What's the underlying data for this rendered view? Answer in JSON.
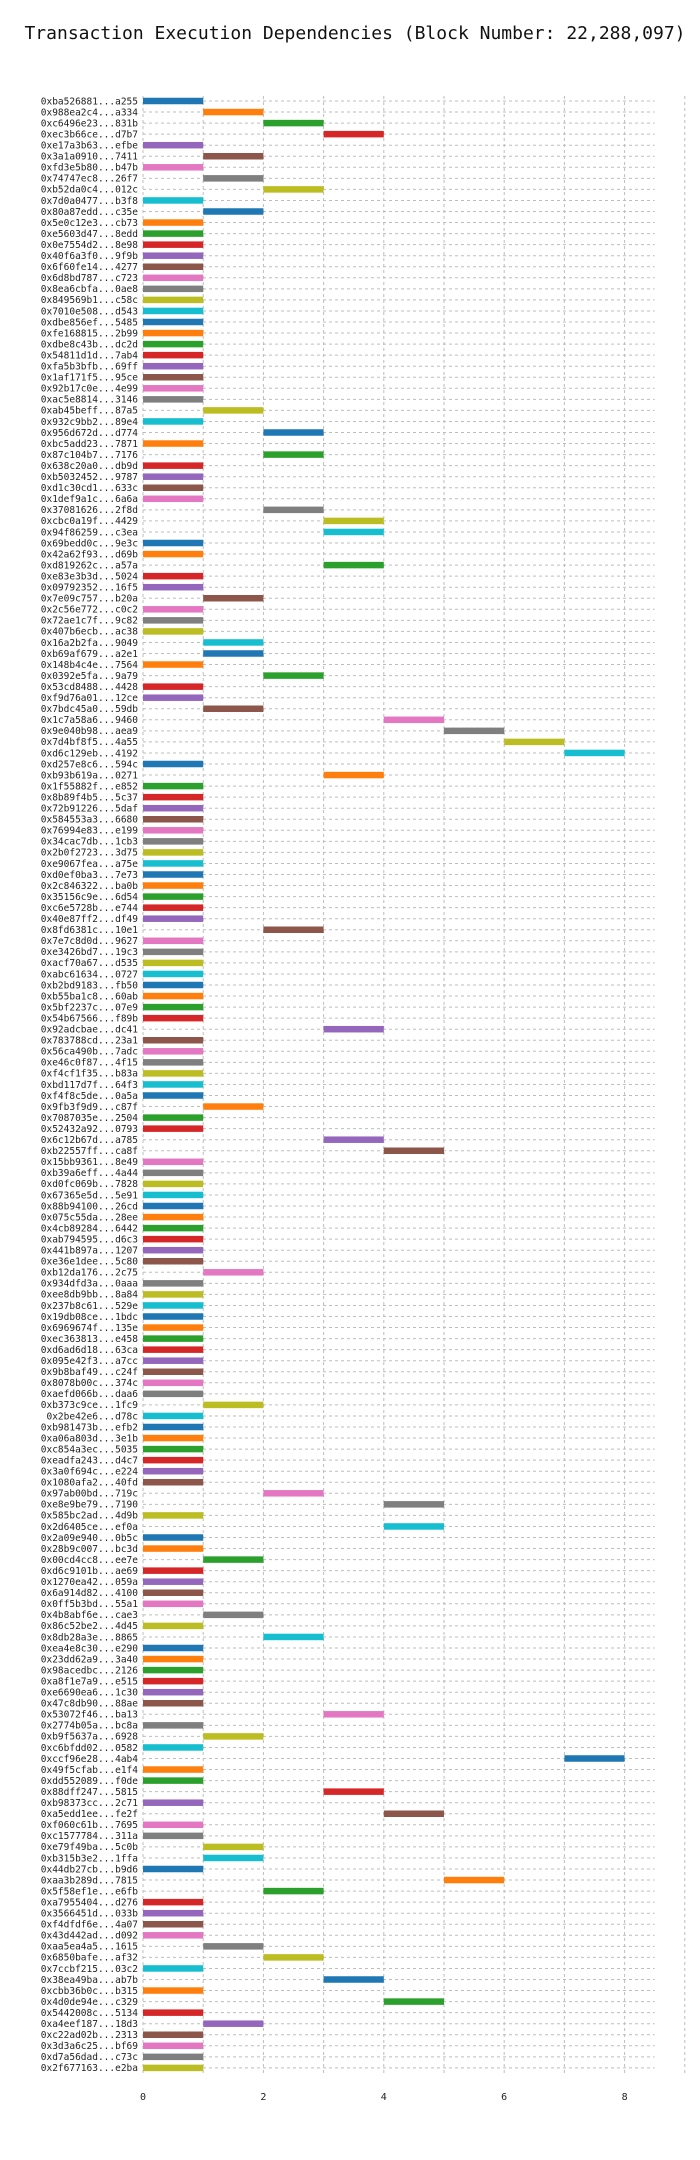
{
  "chart_data": {
    "type": "bar",
    "orientation": "horizontal",
    "title": "Transaction Execution Dependencies (Block Number: 22,288,097)",
    "xlabel": "",
    "ylabel": "",
    "xlim": [
      0,
      8.5
    ],
    "xticks": [
      0,
      2,
      4,
      6,
      8
    ],
    "grid": true,
    "colors": [
      "#1f77b4",
      "#ff7f0e",
      "#2ca02c",
      "#d62728",
      "#9467bd",
      "#8c564b",
      "#e377c2",
      "#7f7f7f",
      "#bcbd22",
      "#17becf"
    ],
    "bars": [
      {
        "label": "0xba526881...a255",
        "start": 0,
        "end": 1
      },
      {
        "label": "0x988ea2c4...a334",
        "start": 1,
        "end": 2
      },
      {
        "label": "0xc6496e23...831b",
        "start": 2,
        "end": 3
      },
      {
        "label": "0xec3b66ce...d7b7",
        "start": 3,
        "end": 4
      },
      {
        "label": "0xe17a3b63...efbe",
        "start": 0,
        "end": 1
      },
      {
        "label": "0x3a1a0910...7411",
        "start": 1,
        "end": 2
      },
      {
        "label": "0xfd3e5b80...b47b",
        "start": 0,
        "end": 1
      },
      {
        "label": "0x74747ec8...26f7",
        "start": 1,
        "end": 2
      },
      {
        "label": "0xb52da0c4...012c",
        "start": 2,
        "end": 3
      },
      {
        "label": "0x7d0a0477...b3f8",
        "start": 0,
        "end": 1
      },
      {
        "label": "0x80a87edd...c35e",
        "start": 1,
        "end": 2
      },
      {
        "label": "0x5e0c12e3...cb73",
        "start": 0,
        "end": 1
      },
      {
        "label": "0xe5603d47...8edd",
        "start": 0,
        "end": 1
      },
      {
        "label": "0x0e7554d2...8e98",
        "start": 0,
        "end": 1
      },
      {
        "label": "0x40f6a3f0...9f9b",
        "start": 0,
        "end": 1
      },
      {
        "label": "0x6f60fe14...4277",
        "start": 0,
        "end": 1
      },
      {
        "label": "0x6d8bd787...c723",
        "start": 0,
        "end": 1
      },
      {
        "label": "0x8ea6cbfa...0ae8",
        "start": 0,
        "end": 1
      },
      {
        "label": "0x849569b1...c58c",
        "start": 0,
        "end": 1
      },
      {
        "label": "0x7010e508...d543",
        "start": 0,
        "end": 1
      },
      {
        "label": "0xdbe856ef...5485",
        "start": 0,
        "end": 1
      },
      {
        "label": "0xfe168815...2b99",
        "start": 0,
        "end": 1
      },
      {
        "label": "0xdbe8c43b...dc2d",
        "start": 0,
        "end": 1
      },
      {
        "label": "0x54811d1d...7ab4",
        "start": 0,
        "end": 1
      },
      {
        "label": "0xfa5b3bfb...69ff",
        "start": 0,
        "end": 1
      },
      {
        "label": "0x1af171f5...95ce",
        "start": 0,
        "end": 1
      },
      {
        "label": "0x92b17c0e...4e99",
        "start": 0,
        "end": 1
      },
      {
        "label": "0xac5e8814...3146",
        "start": 0,
        "end": 1
      },
      {
        "label": "0xab45beff...87a5",
        "start": 1,
        "end": 2
      },
      {
        "label": "0x932c9bb2...89e4",
        "start": 0,
        "end": 1
      },
      {
        "label": "0x956d672d...d774",
        "start": 2,
        "end": 3
      },
      {
        "label": "0xbc5add23...7871",
        "start": 0,
        "end": 1
      },
      {
        "label": "0x87c104b7...7176",
        "start": 2,
        "end": 3
      },
      {
        "label": "0x638c20a0...db9d",
        "start": 0,
        "end": 1
      },
      {
        "label": "0xb5032452...9787",
        "start": 0,
        "end": 1
      },
      {
        "label": "0xd1c30cd1...633c",
        "start": 0,
        "end": 1
      },
      {
        "label": "0x1def9a1c...6a6a",
        "start": 0,
        "end": 1
      },
      {
        "label": "0x37081626...2f8d",
        "start": 2,
        "end": 3
      },
      {
        "label": "0xcbc0a19f...4429",
        "start": 3,
        "end": 4
      },
      {
        "label": "0x94f86259...c3ea",
        "start": 3,
        "end": 4
      },
      {
        "label": "0x69bedd0c...9e3c",
        "start": 0,
        "end": 1
      },
      {
        "label": "0x42a62f93...d69b",
        "start": 0,
        "end": 1
      },
      {
        "label": "0xd819262c...a57a",
        "start": 3,
        "end": 4
      },
      {
        "label": "0xe83e3b3d...5024",
        "start": 0,
        "end": 1
      },
      {
        "label": "0x09792352...16f5",
        "start": 0,
        "end": 1
      },
      {
        "label": "0x7e09c757...b20a",
        "start": 1,
        "end": 2
      },
      {
        "label": "0x2c56e772...c0c2",
        "start": 0,
        "end": 1
      },
      {
        "label": "0x72ae1c7f...9c82",
        "start": 0,
        "end": 1
      },
      {
        "label": "0x407b6ecb...ac38",
        "start": 0,
        "end": 1
      },
      {
        "label": "0x16a2b2fa...9049",
        "start": 1,
        "end": 2
      },
      {
        "label": "0xb69af679...a2e1",
        "start": 1,
        "end": 2
      },
      {
        "label": "0x148b4c4e...7564",
        "start": 0,
        "end": 1
      },
      {
        "label": "0x0392e5fa...9a79",
        "start": 2,
        "end": 3
      },
      {
        "label": "0x53cd8488...4428",
        "start": 0,
        "end": 1
      },
      {
        "label": "0xf9d76a01...12ce",
        "start": 0,
        "end": 1
      },
      {
        "label": "0x7bdc45a0...59db",
        "start": 1,
        "end": 2
      },
      {
        "label": "0x1c7a58a6...9460",
        "start": 4,
        "end": 5
      },
      {
        "label": "0x9e040b98...aea9",
        "start": 5,
        "end": 6
      },
      {
        "label": "0x7d4bf8f5...4a55",
        "start": 6,
        "end": 7
      },
      {
        "label": "0xd6c129eb...4192",
        "start": 7,
        "end": 8
      },
      {
        "label": "0xd257e8c6...594c",
        "start": 0,
        "end": 1
      },
      {
        "label": "0xb93b619a...0271",
        "start": 3,
        "end": 4
      },
      {
        "label": "0x1f55882f...e852",
        "start": 0,
        "end": 1
      },
      {
        "label": "0x8b89f4b5...5c37",
        "start": 0,
        "end": 1
      },
      {
        "label": "0x72b91226...5daf",
        "start": 0,
        "end": 1
      },
      {
        "label": "0x584553a3...6680",
        "start": 0,
        "end": 1
      },
      {
        "label": "0x76994e83...e199",
        "start": 0,
        "end": 1
      },
      {
        "label": "0x34cac7db...1cb3",
        "start": 0,
        "end": 1
      },
      {
        "label": "0x2b0f2723...3d75",
        "start": 0,
        "end": 1
      },
      {
        "label": "0xe9067fea...a75e",
        "start": 0,
        "end": 1
      },
      {
        "label": "0xd0ef0ba3...7e73",
        "start": 0,
        "end": 1
      },
      {
        "label": "0x2c846322...ba0b",
        "start": 0,
        "end": 1
      },
      {
        "label": "0x35156c9e...6d54",
        "start": 0,
        "end": 1
      },
      {
        "label": "0xc6e5728b...e744",
        "start": 0,
        "end": 1
      },
      {
        "label": "0x40e87ff2...df49",
        "start": 0,
        "end": 1
      },
      {
        "label": "0x8fd6381c...10e1",
        "start": 2,
        "end": 3
      },
      {
        "label": "0x7e7c8d0d...9627",
        "start": 0,
        "end": 1
      },
      {
        "label": "0xe3426bd7...19c3",
        "start": 0,
        "end": 1
      },
      {
        "label": "0xacf70a67...d535",
        "start": 0,
        "end": 1
      },
      {
        "label": "0xabc61634...0727",
        "start": 0,
        "end": 1
      },
      {
        "label": "0xb2bd9183...fb50",
        "start": 0,
        "end": 1
      },
      {
        "label": "0xb55ba1c8...60ab",
        "start": 0,
        "end": 1
      },
      {
        "label": "0x5bf2237c...07e9",
        "start": 0,
        "end": 1
      },
      {
        "label": "0x54b67566...f89b",
        "start": 0,
        "end": 1
      },
      {
        "label": "0x92adcbae...dc41",
        "start": 3,
        "end": 4
      },
      {
        "label": "0x783788cd...23a1",
        "start": 0,
        "end": 1
      },
      {
        "label": "0x56ca490b...7adc",
        "start": 0,
        "end": 1
      },
      {
        "label": "0xe46c0f87...4f15",
        "start": 0,
        "end": 1
      },
      {
        "label": "0xf4cf1f35...b83a",
        "start": 0,
        "end": 1
      },
      {
        "label": "0xbd117d7f...64f3",
        "start": 0,
        "end": 1
      },
      {
        "label": "0xf4f8c5de...0a5a",
        "start": 0,
        "end": 1
      },
      {
        "label": "0x9fb3f9d9...c87f",
        "start": 1,
        "end": 2
      },
      {
        "label": "0x7087035e...2504",
        "start": 0,
        "end": 1
      },
      {
        "label": "0x52432a92...0793",
        "start": 0,
        "end": 1
      },
      {
        "label": "0x6c12b67d...a785",
        "start": 3,
        "end": 4
      },
      {
        "label": "0xb22557ff...ca8f",
        "start": 4,
        "end": 5
      },
      {
        "label": "0x15bb9361...8e49",
        "start": 0,
        "end": 1
      },
      {
        "label": "0xb39a6eff...4a44",
        "start": 0,
        "end": 1
      },
      {
        "label": "0xd0fc069b...7828",
        "start": 0,
        "end": 1
      },
      {
        "label": "0x67365e5d...5e91",
        "start": 0,
        "end": 1
      },
      {
        "label": "0x88b94100...26cd",
        "start": 0,
        "end": 1
      },
      {
        "label": "0x075c55da...28ee",
        "start": 0,
        "end": 1
      },
      {
        "label": "0x4cb89284...6442",
        "start": 0,
        "end": 1
      },
      {
        "label": "0xab794595...d6c3",
        "start": 0,
        "end": 1
      },
      {
        "label": "0x441b897a...1207",
        "start": 0,
        "end": 1
      },
      {
        "label": "0xe36e1dee...5c80",
        "start": 0,
        "end": 1
      },
      {
        "label": "0xb12da176...2c75",
        "start": 1,
        "end": 2
      },
      {
        "label": "0x934dfd3a...0aaa",
        "start": 0,
        "end": 1
      },
      {
        "label": "0xee8db9bb...8a84",
        "start": 0,
        "end": 1
      },
      {
        "label": "0x237b8c61...529e",
        "start": 0,
        "end": 1
      },
      {
        "label": "0x19db08ce...1bdc",
        "start": 0,
        "end": 1
      },
      {
        "label": "0x6969674f...135e",
        "start": 0,
        "end": 1
      },
      {
        "label": "0xec363813...e458",
        "start": 0,
        "end": 1
      },
      {
        "label": "0xd6ad6d18...63ca",
        "start": 0,
        "end": 1
      },
      {
        "label": "0x095e42f3...a7cc",
        "start": 0,
        "end": 1
      },
      {
        "label": "0x9b8baf49...c24f",
        "start": 0,
        "end": 1
      },
      {
        "label": "0x8078b00c...374c",
        "start": 0,
        "end": 1
      },
      {
        "label": "0xaefd066b...daa6",
        "start": 0,
        "end": 1
      },
      {
        "label": "0xb373c9ce...1fc9",
        "start": 1,
        "end": 2
      },
      {
        "label": "0x2be42e6...d78c",
        "start": 0,
        "end": 1
      },
      {
        "label": "0xb981473b...efb2",
        "start": 0,
        "end": 1
      },
      {
        "label": "0xa06a803d...3e1b",
        "start": 0,
        "end": 1
      },
      {
        "label": "0xc854a3ec...5035",
        "start": 0,
        "end": 1
      },
      {
        "label": "0xeadfa243...d4c7",
        "start": 0,
        "end": 1
      },
      {
        "label": "0x3a0f694c...e224",
        "start": 0,
        "end": 1
      },
      {
        "label": "0x1080afa2...40fd",
        "start": 0,
        "end": 1
      },
      {
        "label": "0x97ab00bd...719c",
        "start": 2,
        "end": 3
      },
      {
        "label": "0xe8e9be79...7190",
        "start": 4,
        "end": 5
      },
      {
        "label": "0x585bc2ad...4d9b",
        "start": 0,
        "end": 1
      },
      {
        "label": "0x2d6405ce...ef0a",
        "start": 4,
        "end": 5
      },
      {
        "label": "0x2a09e940...0b5c",
        "start": 0,
        "end": 1
      },
      {
        "label": "0x28b9c007...bc3d",
        "start": 0,
        "end": 1
      },
      {
        "label": "0x00cd4cc8...ee7e",
        "start": 1,
        "end": 2
      },
      {
        "label": "0xd6c9101b...ae69",
        "start": 0,
        "end": 1
      },
      {
        "label": "0x1270ea42...059a",
        "start": 0,
        "end": 1
      },
      {
        "label": "0x6a914d82...4100",
        "start": 0,
        "end": 1
      },
      {
        "label": "0x0ff5b3bd...55a1",
        "start": 0,
        "end": 1
      },
      {
        "label": "0x4b8abf6e...cae3",
        "start": 1,
        "end": 2
      },
      {
        "label": "0x86c52be2...4d45",
        "start": 0,
        "end": 1
      },
      {
        "label": "0x8db28a3e...8865",
        "start": 2,
        "end": 3
      },
      {
        "label": "0xea4e8c30...e290",
        "start": 0,
        "end": 1
      },
      {
        "label": "0x23dd62a9...3a40",
        "start": 0,
        "end": 1
      },
      {
        "label": "0x98acedbc...2126",
        "start": 0,
        "end": 1
      },
      {
        "label": "0xa8f1e7a9...e515",
        "start": 0,
        "end": 1
      },
      {
        "label": "0xe6690ea6...1c30",
        "start": 0,
        "end": 1
      },
      {
        "label": "0x47c8db90...88ae",
        "start": 0,
        "end": 1
      },
      {
        "label": "0x53072f46...ba13",
        "start": 3,
        "end": 4
      },
      {
        "label": "0x2774b05a...bc8a",
        "start": 0,
        "end": 1
      },
      {
        "label": "0xb9f5637a...6928",
        "start": 1,
        "end": 2
      },
      {
        "label": "0xc6bfdd02...0582",
        "start": 0,
        "end": 1
      },
      {
        "label": "0xccf96e28...4ab4",
        "start": 7,
        "end": 8
      },
      {
        "label": "0x49f5cfab...e1f4",
        "start": 0,
        "end": 1
      },
      {
        "label": "0xdd552089...f0de",
        "start": 0,
        "end": 1
      },
      {
        "label": "0x88dff247...5815",
        "start": 3,
        "end": 4
      },
      {
        "label": "0xb98373cc...2c71",
        "start": 0,
        "end": 1
      },
      {
        "label": "0xa5edd1ee...fe2f",
        "start": 4,
        "end": 5
      },
      {
        "label": "0xf060c61b...7695",
        "start": 0,
        "end": 1
      },
      {
        "label": "0xc1577784...311a",
        "start": 0,
        "end": 1
      },
      {
        "label": "0xe79f49ba...5c0b",
        "start": 1,
        "end": 2
      },
      {
        "label": "0xb315b3e2...1ffa",
        "start": 1,
        "end": 2
      },
      {
        "label": "0x44db27cb...b9d6",
        "start": 0,
        "end": 1
      },
      {
        "label": "0xaa3b289d...7815",
        "start": 5,
        "end": 6
      },
      {
        "label": "0x5f58ef1e...e6fb",
        "start": 2,
        "end": 3
      },
      {
        "label": "0xa7955404...d276",
        "start": 0,
        "end": 1
      },
      {
        "label": "0x3566451d...033b",
        "start": 0,
        "end": 1
      },
      {
        "label": "0xf4dfdf6e...4a07",
        "start": 0,
        "end": 1
      },
      {
        "label": "0x43d442ad...d092",
        "start": 0,
        "end": 1
      },
      {
        "label": "0xaa5ea4a5...1615",
        "start": 1,
        "end": 2
      },
      {
        "label": "0x6850bafe...af32",
        "start": 2,
        "end": 3
      },
      {
        "label": "0x7ccbf215...03c2",
        "start": 0,
        "end": 1
      },
      {
        "label": "0x38ea49ba...ab7b",
        "start": 3,
        "end": 4
      },
      {
        "label": "0xcbb36b0c...b315",
        "start": 0,
        "end": 1
      },
      {
        "label": "0x4d0de94e...c329",
        "start": 4,
        "end": 5
      },
      {
        "label": "0x5442008c...5134",
        "start": 0,
        "end": 1
      },
      {
        "label": "0xa4eef187...18d3",
        "start": 1,
        "end": 2
      },
      {
        "label": "0xc22ad02b...2313",
        "start": 0,
        "end": 1
      },
      {
        "label": "0x3d3a6c25...bf69",
        "start": 0,
        "end": 1
      },
      {
        "label": "0xd7a56dad...c73c",
        "start": 0,
        "end": 1
      },
      {
        "label": "0x2f677163...e2ba",
        "start": 0,
        "end": 1
      }
    ]
  }
}
